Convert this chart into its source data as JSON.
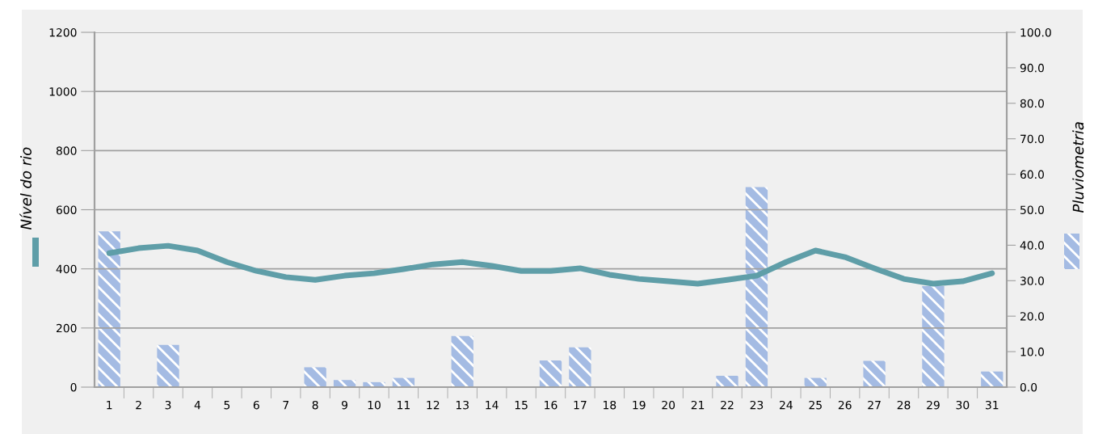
{
  "chart_data": {
    "type": "bar",
    "categories": [
      "1",
      "2",
      "3",
      "4",
      "5",
      "6",
      "7",
      "8",
      "9",
      "10",
      "11",
      "12",
      "13",
      "14",
      "15",
      "16",
      "17",
      "18",
      "19",
      "20",
      "21",
      "22",
      "23",
      "24",
      "25",
      "26",
      "27",
      "28",
      "29",
      "30",
      "31"
    ],
    "series": [
      {
        "axis": "y2",
        "color": "#a4bbe3",
        "values": [
          43.9,
          0,
          11.9,
          0,
          0,
          0,
          0,
          5.6,
          2.0,
          1.4,
          2.6,
          0,
          14.4,
          0,
          0,
          7.5,
          11.2,
          0,
          0,
          0,
          0,
          3.2,
          56.4,
          0,
          2.6,
          0,
          7.4,
          0,
          28.5,
          0,
          4.4
        ]
      },
      {
        "type": "line",
        "axis": "y",
        "color": "#5f9ea8",
        "values": [
          453,
          470,
          478,
          462,
          423,
          393,
          372,
          363,
          377,
          385,
          399,
          415,
          423,
          410,
          393,
          393,
          402,
          380,
          366,
          358,
          350,
          363,
          377,
          423,
          462,
          440,
          402,
          366,
          350,
          358,
          385
        ]
      }
    ],
    "ylabel": "Nível do rio",
    "y2label": "Pluviometria",
    "ylim": [
      0,
      1200
    ],
    "yticks": [
      0,
      200,
      400,
      600,
      800,
      1000,
      1200
    ],
    "y2lim": [
      0,
      100
    ],
    "y2ticks": [
      {
        "value": 0,
        "label": "0.0"
      },
      {
        "value": 10,
        "label": "10.0"
      },
      {
        "value": 20,
        "label": "20.0"
      },
      {
        "value": 30,
        "label": "30.0"
      },
      {
        "value": 40,
        "label": "40.0"
      },
      {
        "value": 50,
        "label": "50.0"
      },
      {
        "value": 60,
        "label": "60.0"
      },
      {
        "value": 70,
        "label": "70.0"
      },
      {
        "value": 80,
        "label": "80.0"
      },
      {
        "value": 90,
        "label": "90.0"
      },
      {
        "value": 100,
        "label": "100.0"
      }
    ],
    "grid": "y",
    "legend": false,
    "marker": "none",
    "line_style": "solid"
  }
}
